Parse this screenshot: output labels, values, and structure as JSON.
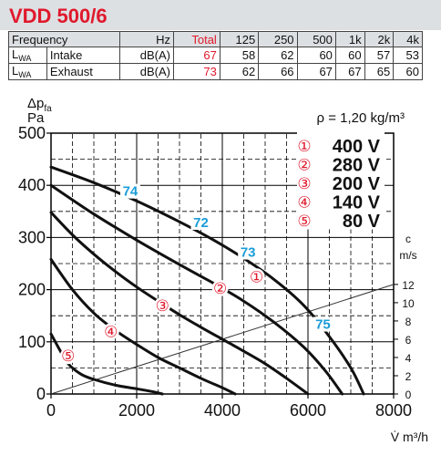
{
  "title": "VDD 500/6",
  "table": {
    "header": {
      "col1": "Frequency",
      "unit": "Hz",
      "total": "Total",
      "bands": [
        "125",
        "250",
        "500",
        "1k",
        "2k",
        "4k"
      ]
    },
    "rows": [
      {
        "sym": "L",
        "sub": "WA",
        "name": "Intake",
        "unit": "dB(A)",
        "total": "67",
        "values": [
          "58",
          "62",
          "60",
          "60",
          "57",
          "53"
        ]
      },
      {
        "sym": "L",
        "sub": "WA",
        "name": "Exhaust",
        "unit": "dB(A)",
        "total": "73",
        "values": [
          "62",
          "66",
          "67",
          "67",
          "65",
          "60"
        ]
      }
    ]
  },
  "colors": {
    "title": "#e0192c",
    "total": "#e0192c",
    "marker": "#e0192c",
    "label": "#1a9cd8",
    "header_bg": "#dde0e3"
  },
  "chart_data": {
    "type": "line",
    "ylabel_symbol": "Δp",
    "ylabel_sub": "fa",
    "ylabel_unit": "Pa",
    "xlabel": "V̇ m³/h",
    "density": "ρ = 1,20 kg/m³",
    "xlim": [
      0,
      8000
    ],
    "ylim": [
      0,
      500
    ],
    "xticks": [
      0,
      2000,
      4000,
      6000,
      8000
    ],
    "yticks": [
      0,
      100,
      200,
      300,
      400,
      500
    ],
    "grid": true,
    "legend_position": "top-right",
    "velocity_axis": {
      "label": "c",
      "unit": "m/s",
      "ticks": [
        0,
        2,
        4,
        6,
        8,
        10,
        12
      ]
    },
    "velocity_line": {
      "x": [
        0,
        8000
      ],
      "y": [
        0,
        210
      ]
    },
    "series": [
      {
        "marker": "①",
        "name": "400 V",
        "x": [
          0,
          1000,
          2000,
          3000,
          3800,
          4500,
          5200,
          5900,
          6500,
          7000,
          7300
        ],
        "y": [
          435,
          405,
          370,
          330,
          295,
          260,
          220,
          170,
          110,
          50,
          0
        ]
      },
      {
        "marker": "②",
        "name": "280 V",
        "x": [
          0,
          1000,
          2000,
          3000,
          3800,
          4500,
          5200,
          5900,
          6400,
          6800
        ],
        "y": [
          400,
          345,
          295,
          248,
          212,
          178,
          138,
          90,
          45,
          0
        ]
      },
      {
        "marker": "③",
        "name": "200 V",
        "x": [
          0,
          500,
          1000,
          1500,
          2000,
          2500,
          3000,
          3500,
          4000,
          4500,
          5000,
          5500,
          6000
        ],
        "y": [
          348,
          305,
          268,
          235,
          205,
          178,
          152,
          128,
          105,
          82,
          58,
          30,
          0
        ]
      },
      {
        "marker": "④",
        "name": "140 V",
        "x": [
          0,
          500,
          1000,
          1500,
          2000,
          2500,
          3000,
          3500,
          4000,
          4300
        ],
        "y": [
          258,
          200,
          155,
          122,
          95,
          70,
          50,
          30,
          12,
          0
        ]
      },
      {
        "marker": "⑤",
        "name": "80 V",
        "x": [
          0,
          200,
          400,
          700,
          1000,
          1500,
          2000,
          2400,
          2600
        ],
        "y": [
          115,
          85,
          58,
          38,
          28,
          17,
          10,
          4,
          0
        ]
      }
    ],
    "curve_markers": [
      {
        "label": "①",
        "x": 4800,
        "y": 225
      },
      {
        "label": "②",
        "x": 3950,
        "y": 203
      },
      {
        "label": "③",
        "x": 2600,
        "y": 170
      },
      {
        "label": "④",
        "x": 1400,
        "y": 120
      },
      {
        "label": "⑤",
        "x": 400,
        "y": 73
      }
    ],
    "noise_labels": [
      {
        "text": "74",
        "x": 1850,
        "y": 380
      },
      {
        "text": "72",
        "x": 3500,
        "y": 320
      },
      {
        "text": "73",
        "x": 4600,
        "y": 263
      },
      {
        "text": "75",
        "x": 6350,
        "y": 125
      }
    ]
  }
}
